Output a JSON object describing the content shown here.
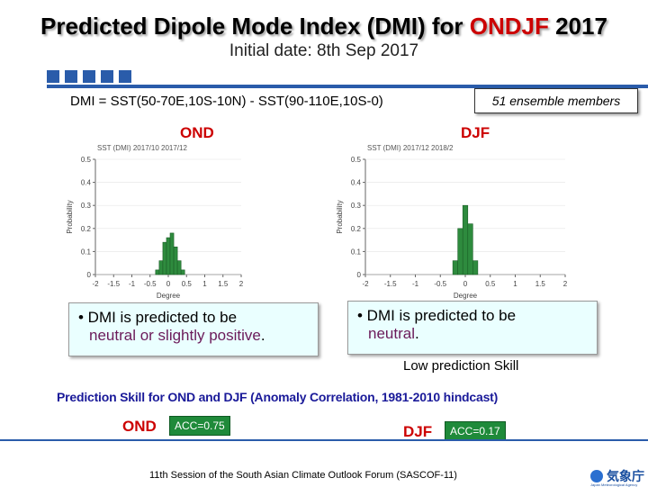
{
  "header": {
    "title_prefix": "Predicted Dipole Mode Index (DMI) for ",
    "title_highlight": "ONDJF",
    "title_suffix": " 2017",
    "subtitle": "Initial date: 8th Sep 2017"
  },
  "formula": "DMI = SST(50-70E,10S-10N) - SST(90-110E,10S-0)",
  "ensemble_note": "51 ensemble members",
  "colors": {
    "accent_red": "#cc0000",
    "bar_green": "#2e8b3e",
    "band_blue": "#2a5caa",
    "acc_green": "#1f8a3a"
  },
  "panels": [
    {
      "label": "OND",
      "chart_data": {
        "type": "bar",
        "title": "SST (DMI) 2017/10 2017/12",
        "xlabel": "Degree",
        "ylabel": "Probability",
        "x": [
          -0.3,
          -0.2,
          -0.1,
          0.0,
          0.1,
          0.2,
          0.3,
          0.4
        ],
        "values": [
          0.02,
          0.06,
          0.14,
          0.16,
          0.18,
          0.12,
          0.06,
          0.02
        ],
        "xlim": [
          -2,
          2
        ],
        "ylim": [
          0,
          0.5
        ],
        "xticks": [
          "-2",
          "-1.5",
          "-1",
          "-0.5",
          "0",
          "0.5",
          "1",
          "1.5",
          "2"
        ],
        "yticks": [
          "0",
          "0.1",
          "0.2",
          "0.3",
          "0.4",
          "0.5"
        ]
      },
      "callout_line1": "• DMI is predicted to be",
      "callout_line2_text": "neutral or slightly positive",
      "callout_line2_end": ".",
      "acc_label": "OND",
      "acc_value": "ACC=0.75"
    },
    {
      "label": "DJF",
      "chart_data": {
        "type": "bar",
        "title": "SST (DMI) 2017/12 2018/2",
        "xlabel": "Degree",
        "ylabel": "Probability",
        "x": [
          -0.2,
          -0.1,
          0.0,
          0.1,
          0.2
        ],
        "values": [
          0.06,
          0.2,
          0.3,
          0.22,
          0.06
        ],
        "xlim": [
          -2,
          2
        ],
        "ylim": [
          0,
          0.5
        ],
        "xticks": [
          "-2",
          "-1.5",
          "-1",
          "-0.5",
          "0",
          "0.5",
          "1",
          "1.5",
          "2"
        ],
        "yticks": [
          "0",
          "0.1",
          "0.2",
          "0.3",
          "0.4",
          "0.5"
        ]
      },
      "callout_line1": "• DMI is predicted to be",
      "callout_line2_text": "neutral",
      "callout_line2_end": ".",
      "acc_label": "DJF",
      "acc_value": "ACC=0.17"
    }
  ],
  "low_skill": "Low prediction Skill",
  "skill_heading": "Prediction Skill for OND and DJF (Anomaly Correlation, 1981-2010 hindcast)",
  "footer": "11th Session of the South Asian Climate Outlook Forum (SASCOF-11)",
  "logo": {
    "name": "気象庁",
    "sub": "Japan Meteorological Agency"
  }
}
